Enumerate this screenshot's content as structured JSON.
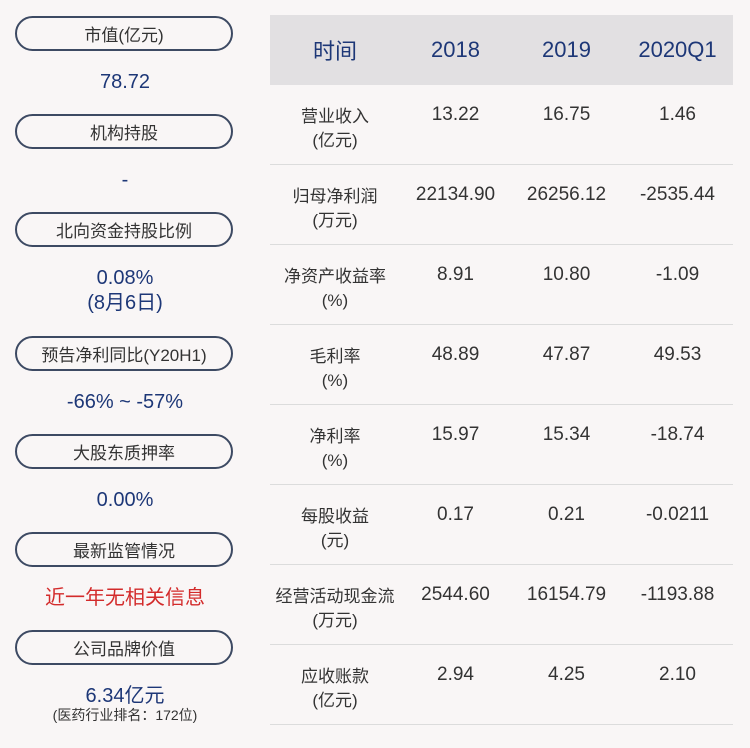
{
  "left": {
    "items": [
      {
        "label": "市值(亿元)",
        "value": "78.72"
      },
      {
        "label": "机构持股",
        "value": "-"
      },
      {
        "label": "北向资金持股比例",
        "value": "0.08%",
        "value2": "(8月6日)"
      },
      {
        "label": "预告净利同比(Y20H1)",
        "value": "-66% ~ -57%"
      },
      {
        "label": "大股东质押率",
        "value": "0.00%"
      },
      {
        "label": "最新监管情况",
        "value": "近一年无相关信息"
      },
      {
        "label": "公司品牌价值",
        "value": "6.34亿元",
        "note": "(医药行业排名：172位)"
      }
    ]
  },
  "table": {
    "headers": [
      "时间",
      "2018",
      "2019",
      "2020Q1"
    ],
    "rows": [
      {
        "name": "营业收入",
        "unit": "(亿元)",
        "v": [
          "13.22",
          "16.75",
          "1.46"
        ]
      },
      {
        "name": "归母净利润",
        "unit": "(万元)",
        "v": [
          "22134.90",
          "26256.12",
          "-2535.44"
        ]
      },
      {
        "name": "净资产收益率",
        "unit": "(%)",
        "v": [
          "8.91",
          "10.80",
          "-1.09"
        ]
      },
      {
        "name": "毛利率",
        "unit": "(%)",
        "v": [
          "48.89",
          "47.87",
          "49.53"
        ]
      },
      {
        "name": "净利率",
        "unit": "(%)",
        "v": [
          "15.97",
          "15.34",
          "-18.74"
        ]
      },
      {
        "name": "每股收益",
        "unit": "(元)",
        "v": [
          "0.17",
          "0.21",
          "-0.0211"
        ]
      },
      {
        "name": "经营活动现金流",
        "unit": "(万元)",
        "v": [
          "2544.60",
          "16154.79",
          "-1193.88"
        ]
      },
      {
        "name": "应收账款",
        "unit": "(亿元)",
        "v": [
          "2.94",
          "4.25",
          "2.10"
        ]
      }
    ]
  }
}
